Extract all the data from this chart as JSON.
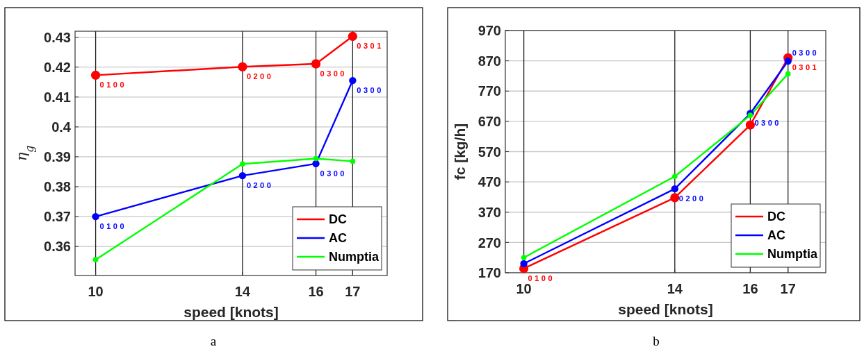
{
  "chart_data": [
    {
      "type": "line",
      "x": [
        10,
        14,
        16,
        17
      ],
      "xlabel": "speed [knots]",
      "ylabel": "η$_{g}$",
      "xlim": [
        9.44,
        17.94
      ],
      "ylim": [
        0.3503,
        0.432
      ],
      "xticks": [
        10,
        14,
        16,
        17
      ],
      "yticks": [
        0.36,
        0.37,
        0.38,
        0.39,
        0.4,
        0.41,
        0.42,
        0.43
      ],
      "grid": true,
      "legend": "bottom right",
      "marker": "circle",
      "line_style": "solid",
      "series": [
        {
          "name": "DC",
          "color": "#ff0000",
          "values": [
            0.4173,
            0.4201,
            0.4211,
            0.4303
          ]
        },
        {
          "name": "AC",
          "color": "#0000ff",
          "values": [
            0.37,
            0.3837,
            0.3877,
            0.4155
          ]
        },
        {
          "name": "Numptia",
          "color": "#00ff00",
          "values": [
            0.3556,
            0.3876,
            0.3894,
            0.3885
          ]
        }
      ],
      "annotations": [
        {
          "text": "0100",
          "x": 10,
          "y": 0.4173
        },
        {
          "text": "0200",
          "x": 14,
          "y": 0.4201
        },
        {
          "text": "0300",
          "x": 16,
          "y": 0.4211
        },
        {
          "text": "0301",
          "x": 17,
          "y": 0.4303
        },
        {
          "text": "0300",
          "x": 17,
          "y": 0.4155
        },
        {
          "text": "0300",
          "x": 16,
          "y": 0.3877
        },
        {
          "text": "0200",
          "x": 14,
          "y": 0.3837
        },
        {
          "text": "0100",
          "x": 10,
          "y": 0.37
        },
        "a"
      ]
    },
    {
      "type": "line",
      "x": [
        10,
        14,
        16,
        17
      ],
      "xlabel": "speed [knots]",
      "ylabel": "fc [kg/h]",
      "xlim": [
        9.51,
        18.0
      ],
      "ylim": [
        170,
        970
      ],
      "xticks": [
        10,
        14,
        16,
        17
      ],
      "yticks": [
        170,
        270,
        370,
        470,
        570,
        670,
        770,
        870,
        970
      ],
      "grid": true,
      "legend": "bottom right",
      "marker": "circle",
      "line_style": "solid",
      "series": [
        {
          "name": "DC",
          "color": "#ff0000",
          "values": [
            184,
            418,
            658,
            880
          ]
        },
        {
          "name": "AC",
          "color": "#0000ff",
          "values": [
            200,
            447,
            696,
            869
          ]
        },
        {
          "name": "Numptia",
          "color": "#00ff00",
          "values": [
            220,
            488,
            690,
            827
          ]
        }
      ],
      "annotations": [
        {
          "text": "0100",
          "x": 10,
          "y": 184
        },
        {
          "text": "0200",
          "x": 14,
          "y": 447
        },
        {
          "text": "0300",
          "x": 16,
          "y": 696
        },
        {
          "text": "0300",
          "x": 17,
          "y": 869
        },
        {
          "text": "0301",
          "x": 17,
          "y": 880
        },
        "b"
      ]
    }
  ]
}
